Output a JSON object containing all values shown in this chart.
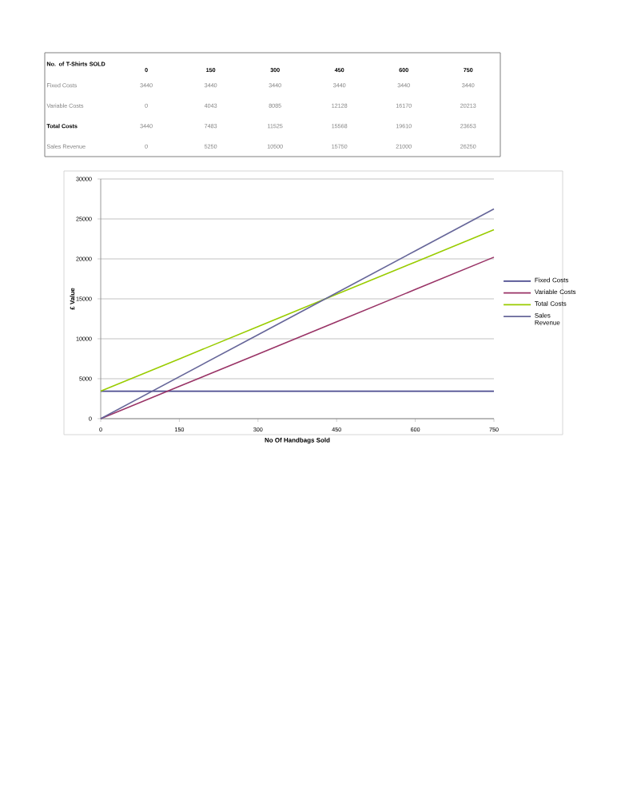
{
  "chart_data": [
    {
      "type": "heatmap",
      "xlabel": "No. of T-Shirts SOLD",
      "categories": [
        "0",
        "150",
        "300",
        "450",
        "600",
        "750"
      ],
      "y_categories": [
        "Fixed Costs",
        "Variable Costs",
        "Total Costs",
        "Sales Revenue"
      ],
      "cells": [
        [
          3440,
          3440,
          3440,
          3440,
          3440,
          3440
        ],
        [
          0,
          4043,
          8085,
          12128,
          16170,
          20213
        ],
        [
          3440,
          7483,
          11525,
          15568,
          19610,
          23653
        ],
        [
          0,
          5250,
          10500,
          15750,
          21000,
          26250
        ]
      ],
      "data_labels": true
    },
    {
      "type": "line",
      "xlabel": "No Of Handbags Sold",
      "ylabel": "£ Value",
      "x": [
        0,
        150,
        300,
        450,
        600,
        750
      ],
      "series": [
        {
          "name": "Fixed Costs",
          "color": "#4b4b8f",
          "values": [
            3440,
            3440,
            3440,
            3440,
            3440,
            3440
          ]
        },
        {
          "name": "Variable Costs",
          "color": "#993366",
          "values": [
            0,
            4043,
            8085,
            12128,
            16170,
            20213
          ]
        },
        {
          "name": "Total Costs",
          "color": "#99cc00",
          "values": [
            3440,
            7483,
            11525,
            15568,
            19610,
            23653
          ]
        },
        {
          "name": "Sales Revenue",
          "color": "#666699",
          "values": [
            0,
            5250,
            10500,
            15750,
            21000,
            26250
          ]
        }
      ],
      "xlim": [
        0,
        750
      ],
      "xticks": [
        0,
        150,
        300,
        450,
        600,
        750
      ],
      "ylim": [
        0,
        30000
      ],
      "yticks": [
        0,
        5000,
        10000,
        15000,
        20000,
        25000,
        30000
      ],
      "grid": "y",
      "legend": "right",
      "marker": "none",
      "line_style": "solid"
    }
  ]
}
